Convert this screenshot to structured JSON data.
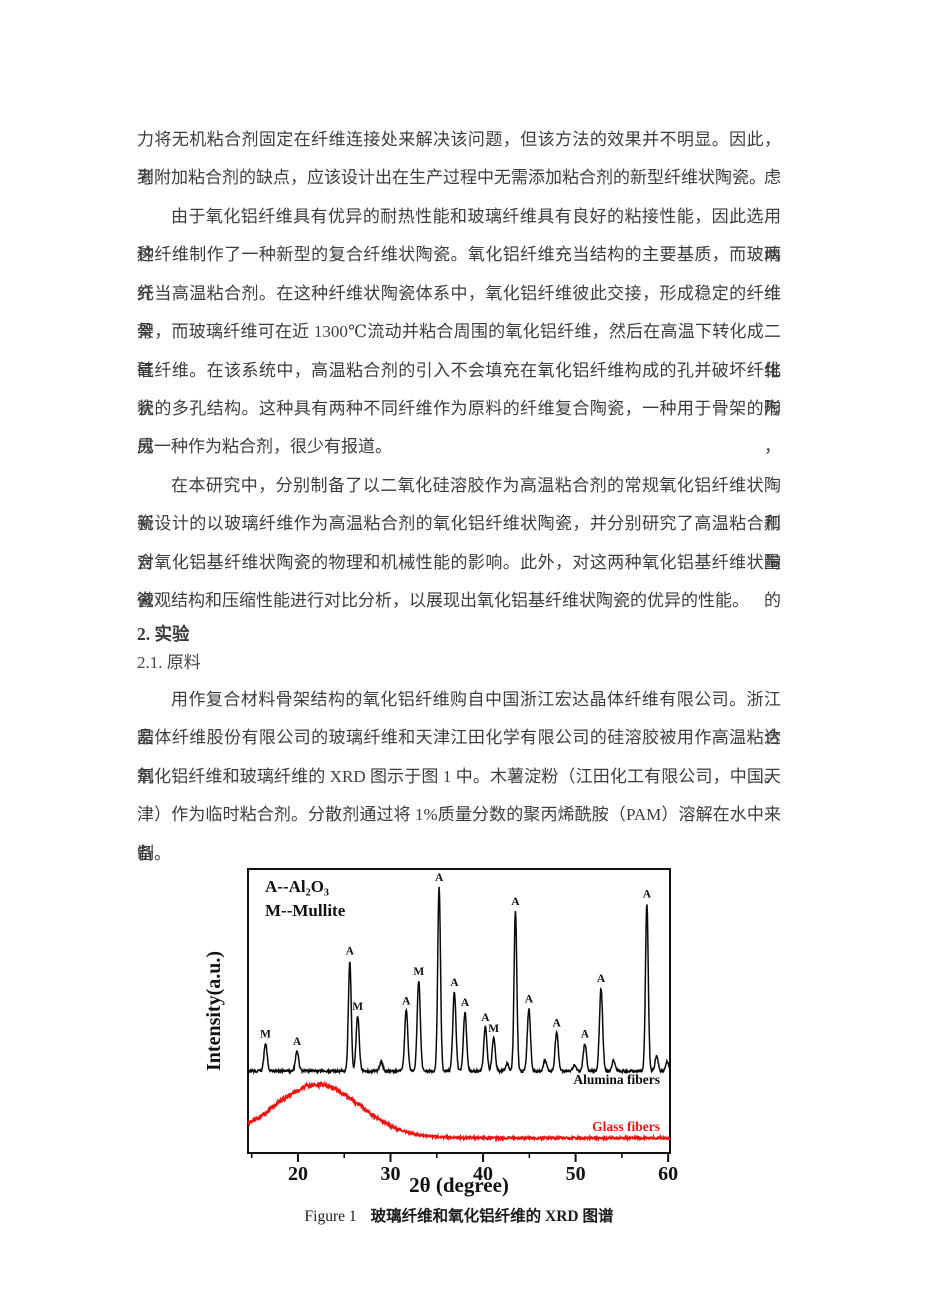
{
  "page": {
    "background": "#ffffff",
    "text_color": "#3d3d3d"
  },
  "paragraphs": {
    "p1": {
      "indent_first": false,
      "lines": [
        "力将无机粘合剂固定在纤维连接处来解决该问题，但该方法的效果并不明显。因此，考虑",
        "到附加粘合剂的缺点，应该设计出在生产过程中无需添加粘合剂的新型纤维状陶瓷。"
      ]
    },
    "p2": {
      "indent_first": true,
      "lines": [
        "由于氧化铝纤维具有优异的耐热性能和玻璃纤维具有良好的粘接性能，因此选用这两",
        "种纤维制作了一种新型的复合纤维状陶瓷。氧化铝纤维充当结构的主要基质，而玻璃纤维",
        "充当高温粘合剂。在这种纤维状陶瓷体系中，氧化铝纤维彼此交接，形成稳定的纤维骨",
        "架，而玻璃纤维可在近 1300℃流动并粘合周围的氧化铝纤维，然后在高温下转化成二氧化",
        "硅纤维。在该系统中，高温粘合剂的引入不会填充在氧化铝纤维构成的孔并破坏纤维状陶",
        "瓷的多孔结构。这种具有两种不同纤维作为原料的纤维复合陶瓷，一种用于骨架的形成，",
        "另一种作为粘合剂，很少有报道。"
      ]
    },
    "p3": {
      "indent_first": true,
      "lines": [
        "在本研究中，分别制备了以二氧化硅溶胶作为高温粘合剂的常规氧化铝纤维状陶瓷和",
        "新设计的以玻璃纤维作为高温粘合剂的氧化铝纤维状陶瓷，并分别研究了高温粘合剂含量",
        "对氧化铝基纤维状陶瓷的物理和机械性能的影响。此外，对这两种氧化铝基纤维状陶瓷的",
        "微观结构和压缩性能进行对比分析，以展现出氧化铝基纤维状陶瓷的优异的性能。"
      ]
    },
    "p4": {
      "indent_first": true,
      "lines": [
        "用作复合材料骨架结构的氧化铝纤维购自中国浙江宏达晶体纤维有限公司。浙江宏达",
        "晶体纤维股份有限公司的玻璃纤维和天津江田化学有限公司的硅溶胶被用作高温粘合剂。",
        "氧化铝纤维和玻璃纤维的 XRD 图示于图 1 中。木薯淀粉（江田化工有限公司，中国天",
        "津）作为临时粘合剂。分散剂通过将 1%质量分数的聚丙烯酰胺（PAM）溶解在水中来制",
        "备。"
      ]
    }
  },
  "headings": {
    "section": "2.  实验",
    "subsection": "2.1.  原料"
  },
  "figure": {
    "caption_en": "Figure 1",
    "caption_zh": "玻璃纤维和氧化铝纤维的 XRD 图谱"
  },
  "chart_data": {
    "type": "line",
    "subtype": "XRD patterns",
    "xlabel": "2θ (degree)",
    "ylabel": "Intensity(a.u.)",
    "xlim": [
      14.6,
      60.2
    ],
    "x_major_ticks": [
      20,
      30,
      40,
      50,
      60
    ],
    "x_minor_ticks": [
      15,
      25,
      35,
      45,
      55
    ],
    "grid": false,
    "legend_notes": [
      "A--Al₂O₃",
      "M--Mullite"
    ],
    "colors": {
      "alumina": "#0b0b0b",
      "glass": "#ee1313",
      "frame": "#111111"
    },
    "series": [
      {
        "name": "Alumina fibers",
        "color": "#0b0b0b",
        "kind": "crystalline",
        "peaks": [
          {
            "two_theta": 16.5,
            "rel_intensity": 15,
            "phase": "M"
          },
          {
            "two_theta": 19.9,
            "rel_intensity": 11,
            "phase": "A"
          },
          {
            "two_theta": 25.6,
            "rel_intensity": 60,
            "phase": "A"
          },
          {
            "two_theta": 26.45,
            "rel_intensity": 30,
            "phase": "M"
          },
          {
            "two_theta": 29.0,
            "rel_intensity": 5,
            "phase": ""
          },
          {
            "two_theta": 31.7,
            "rel_intensity": 33,
            "phase": "A"
          },
          {
            "two_theta": 33.05,
            "rel_intensity": 49,
            "phase": "M"
          },
          {
            "two_theta": 35.25,
            "rel_intensity": 100,
            "phase": "A"
          },
          {
            "two_theta": 36.9,
            "rel_intensity": 43,
            "phase": "A"
          },
          {
            "two_theta": 38.05,
            "rel_intensity": 32,
            "phase": "A"
          },
          {
            "two_theta": 40.25,
            "rel_intensity": 24,
            "phase": "A"
          },
          {
            "two_theta": 41.15,
            "rel_intensity": 18,
            "phase": "M"
          },
          {
            "two_theta": 42.6,
            "rel_intensity": 4,
            "phase": ""
          },
          {
            "two_theta": 43.5,
            "rel_intensity": 87,
            "phase": "A"
          },
          {
            "two_theta": 44.95,
            "rel_intensity": 34,
            "phase": "A"
          },
          {
            "two_theta": 46.7,
            "rel_intensity": 6,
            "phase": ""
          },
          {
            "two_theta": 47.95,
            "rel_intensity": 21,
            "phase": "A"
          },
          {
            "two_theta": 49.9,
            "rel_intensity": 3,
            "phase": ""
          },
          {
            "two_theta": 51.0,
            "rel_intensity": 15,
            "phase": "A"
          },
          {
            "two_theta": 52.75,
            "rel_intensity": 45,
            "phase": "A"
          },
          {
            "two_theta": 54.1,
            "rel_intensity": 6,
            "phase": ""
          },
          {
            "two_theta": 57.7,
            "rel_intensity": 91,
            "phase": "A"
          },
          {
            "two_theta": 58.75,
            "rel_intensity": 8,
            "phase": ""
          },
          {
            "two_theta": 59.9,
            "rel_intensity": 5,
            "phase": ""
          }
        ]
      },
      {
        "name": "Glass fibers",
        "color": "#ee1313",
        "kind": "amorphous",
        "hump_center": 22.1,
        "hump_sigma": 4.6,
        "hump_rel_intensity": 29
      }
    ]
  }
}
